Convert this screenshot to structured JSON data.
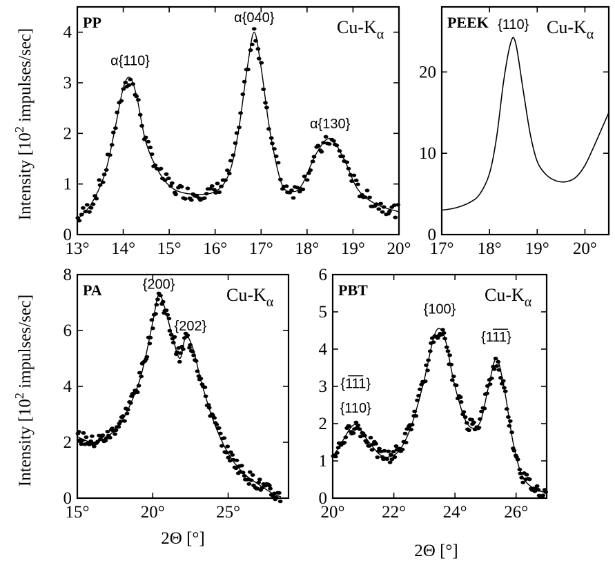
{
  "y_axis_label_left": "Intensity [10",
  "y_axis_label_exp": "2",
  "y_axis_label_right": " impulses/sec]",
  "x_axis_label": "2Θ [°]",
  "source_text": "Cu-K",
  "source_sub": "α",
  "chart_data": [
    {
      "type": "scatter",
      "title": "PP",
      "x_unit": "degrees 2θ",
      "xlim": [
        13,
        20
      ],
      "ylim": [
        0,
        4.5
      ],
      "x_ticks": [
        13,
        14,
        15,
        16,
        17,
        18,
        19,
        20
      ],
      "x_tick_labels": [
        "13°",
        "14°",
        "15°",
        "16°",
        "17°",
        "18°",
        "19°",
        "20°"
      ],
      "y_ticks": [
        0,
        1,
        2,
        3,
        4
      ],
      "y_tick_labels": [
        "0",
        "1",
        "2",
        "3",
        "4"
      ],
      "fit_curve": {
        "x": [
          13.0,
          13.3,
          13.6,
          13.8,
          14.0,
          14.15,
          14.3,
          14.5,
          14.8,
          15.1,
          15.5,
          16.0,
          16.3,
          16.5,
          16.7,
          16.85,
          17.0,
          17.2,
          17.45,
          17.7,
          17.9,
          18.2,
          18.5,
          18.8,
          19.1,
          19.5,
          20.0
        ],
        "y": [
          0.3,
          0.6,
          1.2,
          2.0,
          2.9,
          3.1,
          2.7,
          1.8,
          1.2,
          0.9,
          0.8,
          0.85,
          1.2,
          2.0,
          3.3,
          4.0,
          3.3,
          2.0,
          1.0,
          0.85,
          1.0,
          1.6,
          1.9,
          1.5,
          0.9,
          0.6,
          0.45
        ]
      },
      "annotations": [
        {
          "text": "α{110}",
          "x": 14.15,
          "y": 3.35
        },
        {
          "text": "α{040}",
          "x": 16.85,
          "y": 4.2
        },
        {
          "text": "α{130}",
          "x": 18.5,
          "y": 2.1
        }
      ]
    },
    {
      "type": "line",
      "title": "PEEK",
      "xlim": [
        17,
        20.5
      ],
      "ylim": [
        0,
        28
      ],
      "x_ticks": [
        17,
        18,
        19,
        20
      ],
      "x_tick_labels": [
        "17°",
        "18°",
        "19°",
        "20°"
      ],
      "y_ticks": [
        0,
        10,
        20
      ],
      "y_tick_labels": [
        "0",
        "10",
        "20"
      ],
      "series": [
        {
          "x": [
            17.0,
            17.3,
            17.6,
            17.8,
            18.0,
            18.15,
            18.3,
            18.45,
            18.55,
            18.7,
            18.85,
            19.0,
            19.2,
            19.4,
            19.6,
            19.8,
            20.0,
            20.2,
            20.5
          ],
          "values": [
            3.0,
            3.3,
            4.0,
            5.0,
            7.5,
            12.0,
            19.0,
            23.7,
            23.5,
            18.0,
            12.5,
            9.0,
            7.3,
            6.6,
            6.5,
            7.0,
            8.5,
            11.0,
            15.0
          ]
        }
      ],
      "annotations": [
        {
          "text": "{110}",
          "x": 18.5,
          "y": 25.3
        }
      ]
    },
    {
      "type": "scatter",
      "title": "PA",
      "xlim": [
        15,
        29
      ],
      "ylim": [
        0,
        8
      ],
      "x_ticks": [
        15,
        20,
        25
      ],
      "x_tick_labels": [
        "15°",
        "20°",
        "25°"
      ],
      "y_ticks": [
        0,
        2,
        4,
        6,
        8
      ],
      "y_tick_labels": [
        "0",
        "2",
        "4",
        "6",
        "8"
      ],
      "fit_curve": {
        "x": [
          15.0,
          16.0,
          17.0,
          18.0,
          19.0,
          19.5,
          20.0,
          20.4,
          20.8,
          21.3,
          21.8,
          22.2,
          22.7,
          23.2,
          24.0,
          25.0,
          26.0,
          27.0,
          28.0,
          28.5
        ],
        "y": [
          2.2,
          2.0,
          2.2,
          2.8,
          4.0,
          5.0,
          6.3,
          7.3,
          6.8,
          5.8,
          5.0,
          5.8,
          5.3,
          4.2,
          2.8,
          1.6,
          0.9,
          0.5,
          0.15,
          0.05
        ]
      },
      "annotations": [
        {
          "text": "{200}",
          "x": 20.4,
          "y": 7.5
        },
        {
          "text": "{202}",
          "x": 22.5,
          "y": 6.0
        }
      ]
    },
    {
      "type": "scatter",
      "title": "PBT",
      "xlim": [
        20,
        27
      ],
      "ylim": [
        0,
        6
      ],
      "x_ticks": [
        20,
        22,
        24,
        26
      ],
      "x_tick_labels": [
        "20°",
        "22°",
        "24°",
        "26°"
      ],
      "y_ticks": [
        0,
        1,
        2,
        3,
        4,
        5,
        6
      ],
      "y_tick_labels": [
        "0",
        "1",
        "2",
        "3",
        "4",
        "5",
        "6"
      ],
      "fit_curve": {
        "x": [
          20.0,
          20.3,
          20.6,
          20.8,
          21.1,
          21.5,
          21.8,
          22.2,
          22.6,
          23.0,
          23.3,
          23.5,
          23.7,
          24.0,
          24.4,
          24.8,
          25.1,
          25.35,
          25.6,
          25.9,
          26.2,
          26.6,
          27.0
        ],
        "y": [
          1.1,
          1.5,
          1.9,
          1.95,
          1.6,
          1.2,
          1.1,
          1.3,
          2.0,
          3.2,
          4.3,
          4.55,
          4.2,
          3.0,
          2.0,
          2.0,
          3.0,
          3.75,
          3.0,
          1.5,
          0.6,
          0.25,
          0.15
        ]
      },
      "annotations": [
        {
          "text": "{100}",
          "x": 23.5,
          "y": 4.95
        },
        {
          "text": "{111}",
          "x": 25.35,
          "y": 4.2,
          "overline": "11",
          "leading_minus": "1"
        },
        {
          "text": "{111}",
          "x": 20.75,
          "y": 2.95,
          "overline": "11"
        },
        {
          "text": "{110}",
          "x": 20.75,
          "y": 2.3
        }
      ]
    }
  ]
}
